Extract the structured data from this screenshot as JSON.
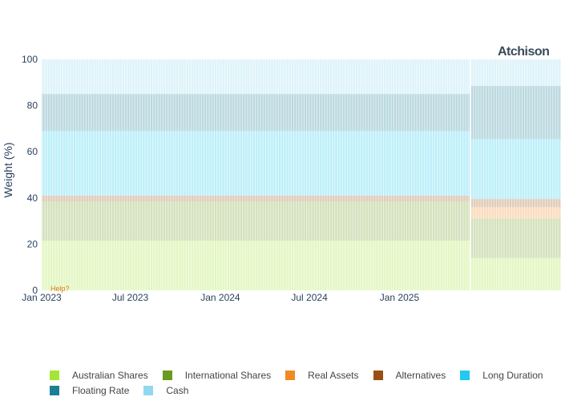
{
  "logo_text": "Atchison",
  "help_text": "Help?",
  "chart_data": {
    "type": "area",
    "stacked": true,
    "title": "",
    "xlabel": "",
    "ylabel": "Weight (%)",
    "ylim": [
      0,
      100
    ],
    "yticks": [
      "0",
      "20",
      "40",
      "60",
      "80",
      "100"
    ],
    "xticks": [
      {
        "date": "2023-01-01",
        "label": "Jan 2023"
      },
      {
        "date": "2023-07-01",
        "label": "Jul 2023"
      },
      {
        "date": "2024-01-01",
        "label": "Jan 2024"
      },
      {
        "date": "2024-07-01",
        "label": "Jul 2024"
      },
      {
        "date": "2025-01-01",
        "label": "Jan 2025"
      }
    ],
    "xlim": [
      "2023-01-01",
      "2025-11-27"
    ],
    "grid": false,
    "legend_position": "bottom",
    "periods": [
      {
        "start": "2023-01-01",
        "end": "2025-05-26"
      },
      {
        "start": "2025-05-26",
        "end": "2025-11-27"
      }
    ],
    "series": [
      {
        "name": "Australian Shares",
        "color": "#a3e635",
        "values": [
          21.5,
          14.0
        ]
      },
      {
        "name": "International Shares",
        "color": "#6a9a1f",
        "values": [
          17.0,
          17.0
        ]
      },
      {
        "name": "Real Assets",
        "color": "#f08a24",
        "values": [
          0.0,
          5.0
        ]
      },
      {
        "name": "Alternatives",
        "color": "#9a4f10",
        "values": [
          2.5,
          3.5
        ]
      },
      {
        "name": "Long Duration",
        "color": "#22c9f0",
        "values": [
          28.0,
          26.0
        ]
      },
      {
        "name": "Floating Rate",
        "color": "#1a7f96",
        "values": [
          16.0,
          23.0
        ]
      },
      {
        "name": "Cash",
        "color": "#8fd8ef",
        "values": [
          15.0,
          11.5
        ]
      }
    ]
  }
}
